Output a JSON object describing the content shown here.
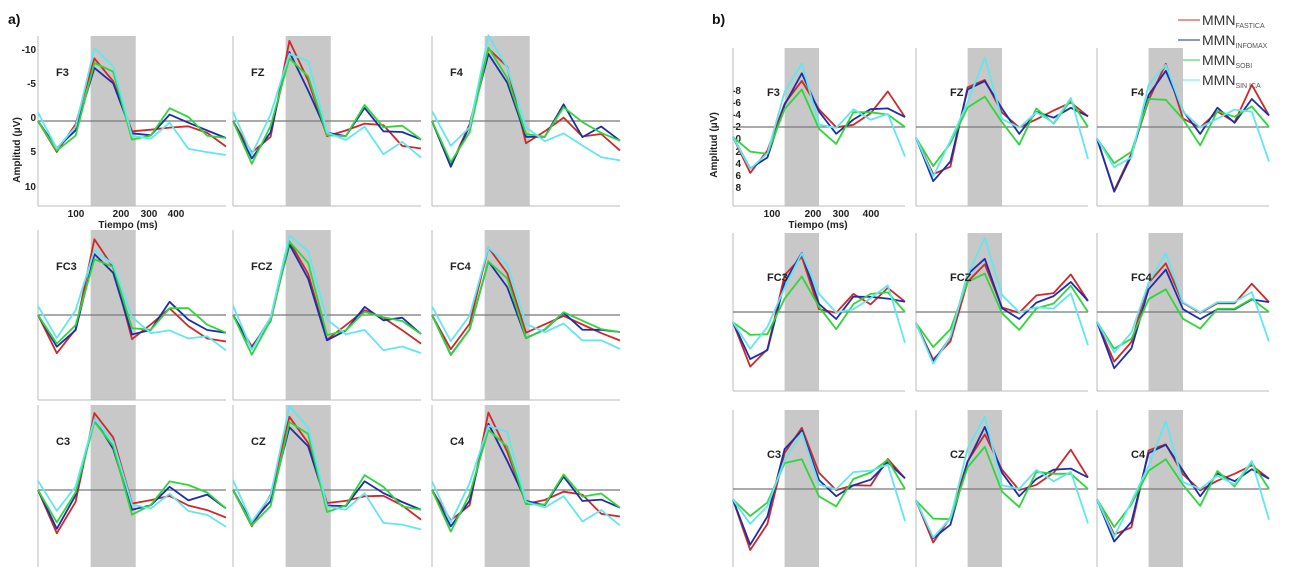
{
  "panels": [
    {
      "label": "a)",
      "ylabel": "Amplitud (μV)",
      "xlabel": "Tiempo (ms)",
      "y_ticks": [
        "-10",
        "-5",
        "0",
        "5",
        "10"
      ],
      "x_ticks": [
        "100",
        "200",
        "300",
        "400"
      ]
    },
    {
      "label": "b)",
      "ylabel": "Amplitud (μV)",
      "xlabel": "Tiempo (ms)",
      "y_ticks": [
        "-8",
        "-6",
        "-4",
        "-2",
        "0",
        "2",
        "4",
        "6",
        "8"
      ],
      "x_ticks": [
        "100",
        "200",
        "300",
        "400"
      ]
    }
  ],
  "legend": [
    {
      "main": "MMN",
      "sub": "FASTICA"
    },
    {
      "main": "MMN",
      "sub": "INFOMAX"
    },
    {
      "main": "MMN",
      "sub": "SOBI"
    },
    {
      "main": "MMN",
      "sub": "SIN ICA"
    }
  ],
  "series_colors": [
    "#d02828",
    "#1d2fa8",
    "#2fd53a",
    "#62e6ef"
  ],
  "chart_data": [
    {
      "type": "line",
      "panel": "a)",
      "note_axis": "y axis plotted with negative up",
      "xlabel": "Tiempo (ms)",
      "ylabel": "Amplitud (μV)",
      "xlim": [
        0,
        500
      ],
      "ylim": [
        -10,
        10
      ],
      "shaded_window": [
        140,
        260
      ],
      "electrodes": [
        "F3",
        "FZ",
        "F4",
        "FC3",
        "FCZ",
        "FC4",
        "C3",
        "CZ",
        "C4"
      ],
      "x": [
        0,
        50,
        100,
        150,
        200,
        250,
        300,
        350,
        400,
        450,
        500
      ],
      "series_shapes": [
        [
          0,
          4,
          1,
          -8,
          -5,
          2,
          1,
          0,
          1,
          2,
          3
        ],
        [
          0,
          4,
          1,
          -7,
          -4,
          2,
          1,
          -1,
          1,
          1,
          2
        ],
        [
          0,
          4,
          1,
          -7,
          -5,
          2,
          1,
          -1,
          0,
          1,
          2
        ],
        [
          -1,
          3,
          0,
          -8,
          -6,
          1,
          2,
          1,
          3,
          3,
          4
        ]
      ]
    },
    {
      "type": "line",
      "panel": "b)",
      "note_axis": "y axis plotted with negative up",
      "xlabel": "Tiempo (ms)",
      "ylabel": "Amplitud (μV)",
      "xlim": [
        0,
        500
      ],
      "ylim": [
        -8,
        8
      ],
      "shaded_window": [
        150,
        250
      ],
      "electrodes": [
        "F3",
        "FZ",
        "F4",
        "FC3",
        "FCZ",
        "FC4",
        "C3",
        "CZ",
        "C4"
      ],
      "x": [
        0,
        50,
        100,
        150,
        200,
        250,
        300,
        350,
        400,
        450,
        500
      ],
      "series_shapes": [
        [
          1,
          5,
          3,
          -3,
          -5,
          -1,
          0,
          -1,
          -1,
          -3,
          -1
        ],
        [
          1,
          5,
          3,
          -3,
          -5,
          -1,
          0,
          -1,
          -1,
          -2,
          -1
        ],
        [
          1,
          3,
          2,
          -2,
          -3,
          0,
          1,
          -1,
          -1,
          -2,
          0
        ],
        [
          1,
          4,
          2,
          -3,
          -6,
          -1,
          0,
          -1,
          -1,
          -2,
          3
        ]
      ]
    }
  ]
}
